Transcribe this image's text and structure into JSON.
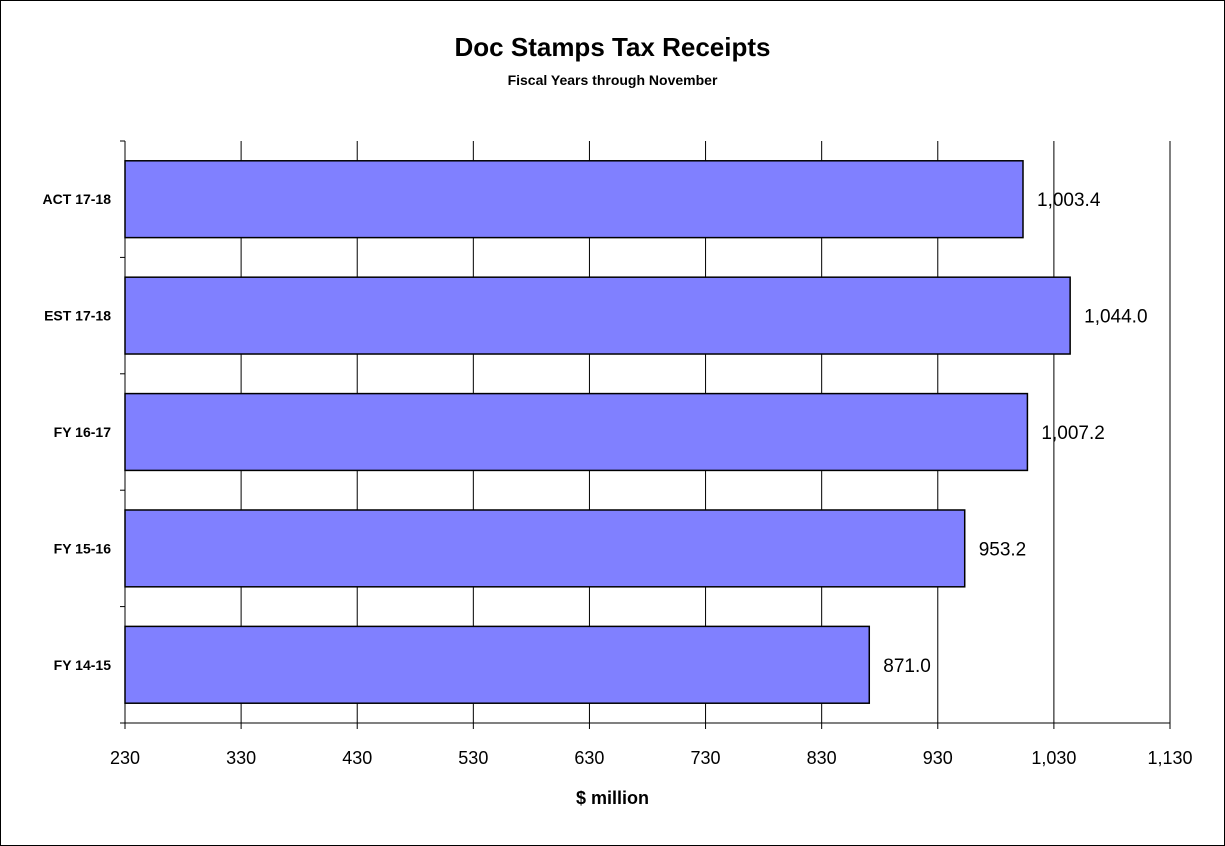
{
  "chart_data": {
    "type": "bar",
    "orientation": "horizontal",
    "title": "Doc Stamps Tax Receipts",
    "subtitle": "Fiscal Years through November",
    "xlabel": "$ million",
    "ylabel": "",
    "categories": [
      "ACT 17-18",
      "EST 17-18",
      "FY 16-17",
      "FY 15-16",
      "FY 14-15"
    ],
    "values": [
      1003.4,
      1044.0,
      1007.2,
      953.2,
      871.0
    ],
    "data_labels": [
      "1,003.4",
      "1,044.0",
      "1,007.2",
      "953.2",
      "871.0"
    ],
    "xlim": [
      230,
      1130
    ],
    "xticks": [
      230,
      330,
      430,
      530,
      630,
      730,
      830,
      930,
      1030,
      1130
    ],
    "xtick_labels": [
      "230",
      "330",
      "430",
      "530",
      "630",
      "730",
      "830",
      "930",
      "1,030",
      "1,130"
    ],
    "grid": "vertical",
    "legend": "none",
    "colors": {
      "bar_fill": "#8080ff",
      "bar_stroke": "#000000",
      "grid": "#000000"
    }
  }
}
